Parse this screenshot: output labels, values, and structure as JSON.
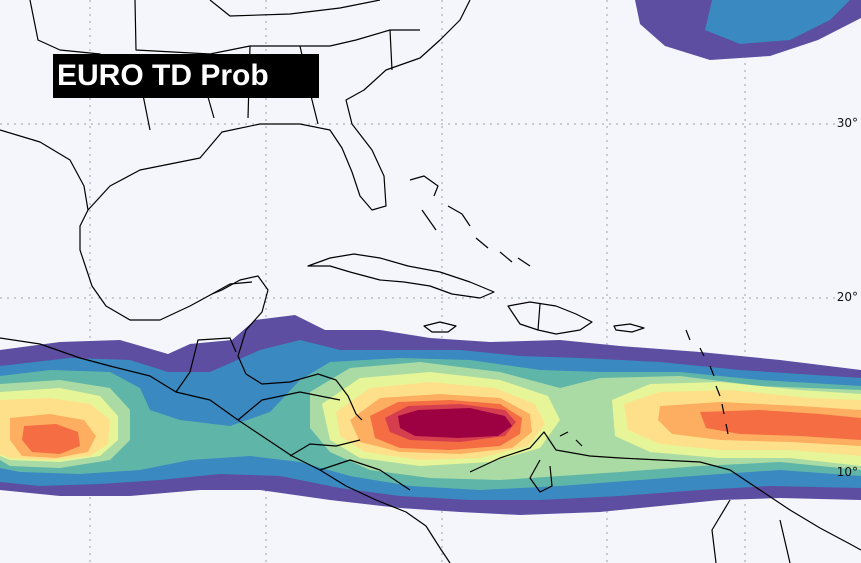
{
  "title": "EURO TD Prob",
  "latitude_labels": {
    "lat30": "30°",
    "lat20": "20°",
    "lat10": "10°"
  },
  "colors": {
    "background": "#f4f6fb",
    "coastline": "#000000",
    "gridline": "#9aa0aa",
    "prob_scale": [
      "#5d4ea1",
      "#3a89c0",
      "#5fb6a8",
      "#abdba4",
      "#e6f598",
      "#fee08b",
      "#fdae61",
      "#f46d43",
      "#d53e4f",
      "#9e0142"
    ]
  }
}
